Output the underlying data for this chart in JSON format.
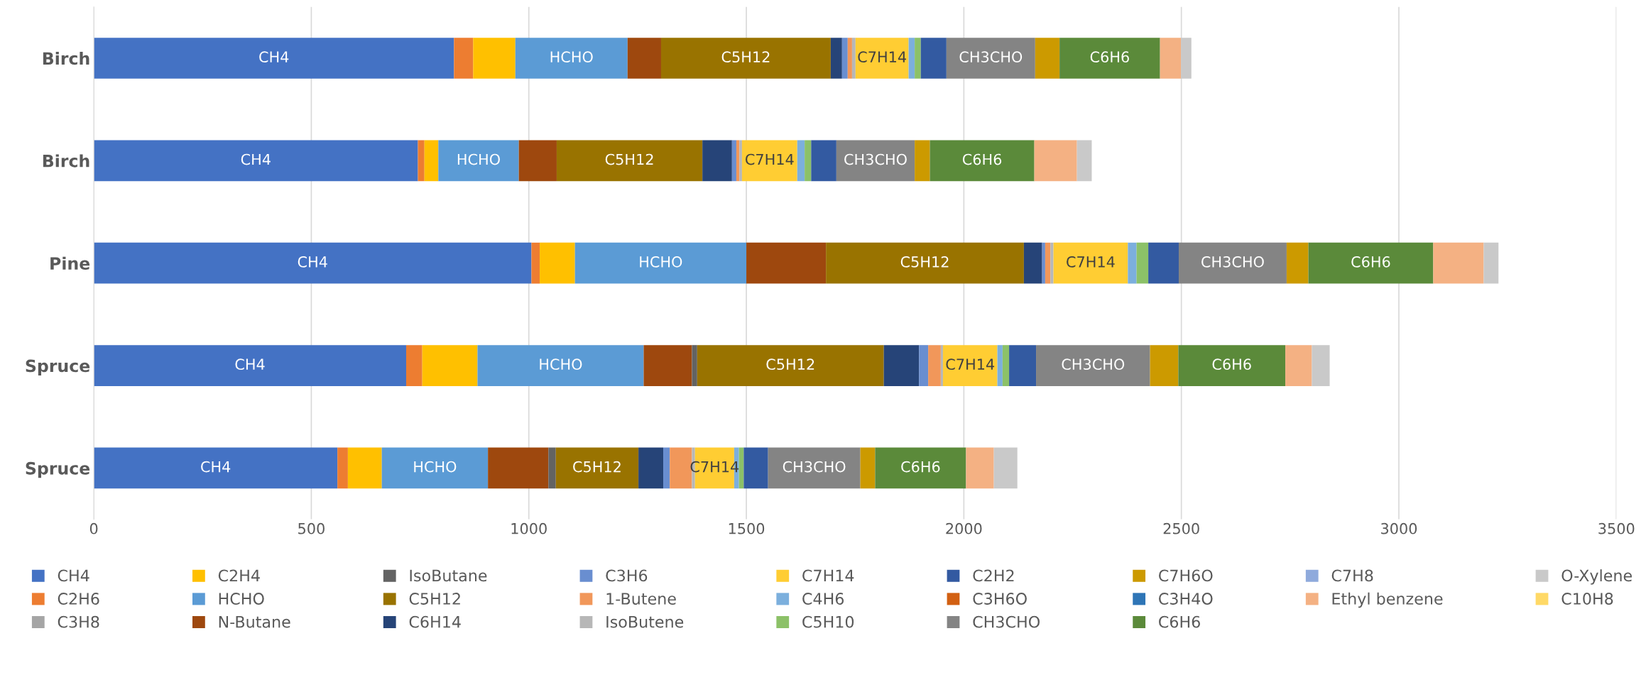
{
  "chart_data": {
    "type": "bar",
    "orientation": "horizontal",
    "stacked": true,
    "categories": [
      "Birch",
      "Birch",
      "Pine",
      "Spruce",
      "Spruce"
    ],
    "xlim": [
      0,
      3500
    ],
    "xticks": [
      0,
      500,
      1000,
      1500,
      2000,
      2500,
      3000,
      3500
    ],
    "grid": "x",
    "legend": "bottom",
    "series": [
      {
        "name": "CH4",
        "color": "#4472c4",
        "values": [
          828,
          745,
          1006,
          718,
          560
        ],
        "value_labels": [
          "CH4",
          "CH4",
          "CH4",
          "CH4",
          "CH4"
        ]
      },
      {
        "name": "C2H6",
        "color": "#ed7d31",
        "values": [
          44,
          15,
          19,
          37,
          24
        ]
      },
      {
        "name": "C3H8",
        "color": "#a5a5a5",
        "values": [
          0,
          0,
          0,
          0,
          0
        ]
      },
      {
        "name": "C2H4",
        "color": "#ffc000",
        "values": [
          97,
          32,
          81,
          127,
          78
        ]
      },
      {
        "name": "HCHO",
        "color": "#5b9bd5",
        "values": [
          258,
          185,
          394,
          382,
          244
        ],
        "value_labels": [
          "HCHO",
          "HCHO",
          "HCHO",
          "HCHO",
          "HCHO"
        ]
      },
      {
        "name": "N-Butane",
        "color": "#9e480e",
        "values": [
          77,
          87,
          183,
          111,
          139
        ]
      },
      {
        "name": "IsoButane",
        "color": "#636363",
        "values": [
          0,
          0,
          0,
          12,
          17
        ]
      },
      {
        "name": "C5H12",
        "color": "#997300",
        "values": [
          390,
          335,
          455,
          429,
          190
        ],
        "value_labels": [
          "C5H12",
          "C5H12",
          "C5H12",
          "C5H12",
          "C5H12"
        ]
      },
      {
        "name": "C6H14",
        "color": "#264478",
        "values": [
          26,
          68,
          42,
          81,
          57
        ]
      },
      {
        "name": "C3H6",
        "color": "#698ed0",
        "values": [
          13,
          10,
          7,
          21,
          15
        ]
      },
      {
        "name": "1-Butene",
        "color": "#f1975a",
        "values": [
          10,
          7,
          12,
          29,
          51
        ]
      },
      {
        "name": "IsoButene",
        "color": "#b7b7b7",
        "values": [
          8,
          6,
          7,
          5,
          7
        ]
      },
      {
        "name": "C7H14",
        "color": "#ffcd33",
        "values": [
          122,
          127,
          171,
          125,
          90
        ],
        "value_labels": [
          "C7H14",
          "C7H14",
          "C7H14",
          "C7H14",
          "C7H14"
        ]
      },
      {
        "name": "C4H6",
        "color": "#7cafdd",
        "values": [
          14,
          17,
          20,
          12,
          11
        ]
      },
      {
        "name": "C5H10",
        "color": "#8cc168",
        "values": [
          14,
          15,
          27,
          15,
          11
        ]
      },
      {
        "name": "C2H2",
        "color": "#335aa1",
        "values": [
          59,
          58,
          70,
          62,
          56
        ]
      },
      {
        "name": "C3H6O",
        "color": "#d26012",
        "values": [
          0,
          0,
          0,
          0,
          0
        ]
      },
      {
        "name": "CH3CHO",
        "color": "#848484",
        "values": [
          204,
          180,
          248,
          262,
          212
        ],
        "value_labels": [
          "CH3CHO",
          "CH3CHO",
          "CH3CHO",
          "CH3CHO",
          "CH3CHO"
        ]
      },
      {
        "name": "C7H6O",
        "color": "#cc9a00",
        "values": [
          56,
          35,
          50,
          65,
          34
        ]
      },
      {
        "name": "C3H4O",
        "color": "#2e75b6",
        "values": [
          0,
          0,
          0,
          0,
          0
        ]
      },
      {
        "name": "C6H6",
        "color": "#5b8a3a",
        "values": [
          231,
          240,
          287,
          246,
          209
        ],
        "value_labels": [
          "C6H6",
          "C6H6",
          "C6H6",
          "C6H6",
          "C6H6"
        ]
      },
      {
        "name": "C7H8",
        "color": "#8faadc",
        "values": [
          0,
          0,
          0,
          0,
          0
        ]
      },
      {
        "name": "Ethyl benzene",
        "color": "#f4b183",
        "values": [
          48,
          98,
          116,
          61,
          64
        ]
      },
      {
        "name": "O-Xylene",
        "color": "#c9c9c9",
        "values": [
          24,
          34,
          34,
          41,
          54
        ]
      },
      {
        "name": "C10H8",
        "color": "#ffd966",
        "values": [
          0,
          0,
          0,
          0,
          0
        ]
      }
    ]
  }
}
